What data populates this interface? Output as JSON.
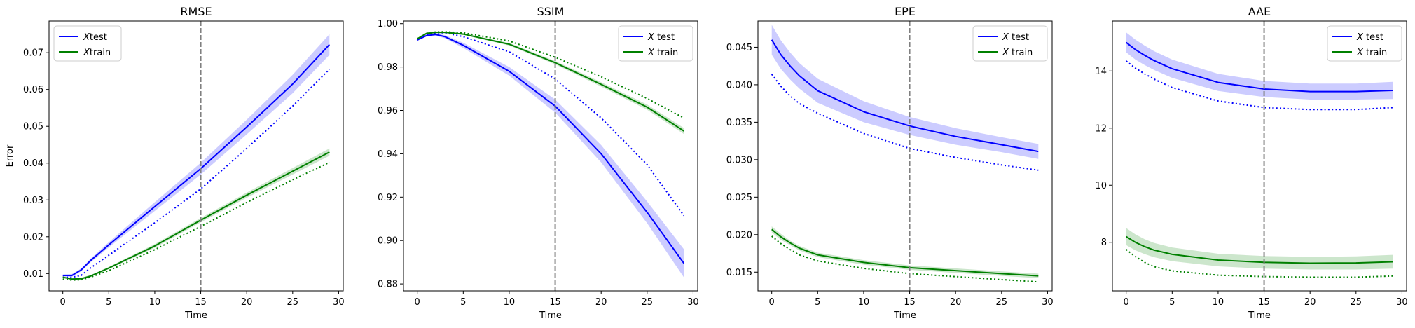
{
  "chart_data": [
    {
      "type": "line",
      "title": "RMSE",
      "xlabel": "Time",
      "ylabel": "Error",
      "xlim": [
        -1.5,
        30.5
      ],
      "ylim": [
        0.0053,
        0.0786
      ],
      "xticks": [
        0,
        5,
        10,
        15,
        20,
        25,
        30
      ],
      "yticks": [
        0.01,
        0.02,
        0.03,
        0.04,
        0.05,
        0.06,
        0.07
      ],
      "ytick_labels": [
        "0.01",
        "0.02",
        "0.03",
        "0.04",
        "0.05",
        "0.06",
        "0.07"
      ],
      "vline_x": 15,
      "legend_position": "upper-left",
      "legend": [
        {
          "label": "$X$test",
          "display_prefix": "X",
          "display_suffix": "test",
          "color": "#0000ff"
        },
        {
          "label": "$X$train",
          "display_prefix": "X",
          "display_suffix": "train",
          "color": "#008000"
        }
      ],
      "series": [
        {
          "name": "$X$test",
          "color": "#0000ff",
          "style": "solid",
          "x": [
            0,
            1,
            2,
            3,
            5,
            10,
            15,
            20,
            25,
            29
          ],
          "y": [
            0.0095,
            0.0095,
            0.011,
            0.0135,
            0.0178,
            0.0282,
            0.0385,
            0.0498,
            0.0615,
            0.0722
          ],
          "band_half_width": [
            0.0003,
            0.0004,
            0.0004,
            0.0005,
            0.0007,
            0.0012,
            0.0016,
            0.002,
            0.0025,
            0.0028
          ]
        },
        {
          "name": "$X$test (dotted)",
          "color": "#0000ff",
          "style": "dotted",
          "x": [
            0,
            1,
            2,
            3,
            5,
            10,
            15,
            20,
            25,
            29
          ],
          "y": [
            0.009,
            0.009,
            0.0095,
            0.0115,
            0.015,
            0.0238,
            0.033,
            0.044,
            0.0555,
            0.0655
          ]
        },
        {
          "name": "$X$train",
          "color": "#008000",
          "style": "solid",
          "x": [
            0,
            1,
            2,
            3,
            5,
            10,
            15,
            20,
            25,
            29
          ],
          "y": [
            0.009,
            0.0085,
            0.0086,
            0.0093,
            0.0115,
            0.0175,
            0.0245,
            0.0313,
            0.0378,
            0.043
          ],
          "band_half_width": [
            0.0003,
            0.0003,
            0.0003,
            0.0003,
            0.0003,
            0.0005,
            0.0006,
            0.0007,
            0.0009,
            0.001
          ]
        },
        {
          "name": "$X$train (dotted)",
          "color": "#008000",
          "style": "dotted",
          "x": [
            0,
            1,
            2,
            3,
            5,
            10,
            15,
            20,
            25,
            29
          ],
          "y": [
            0.0085,
            0.0082,
            0.0083,
            0.009,
            0.0108,
            0.0165,
            0.0228,
            0.0293,
            0.0355,
            0.0402
          ]
        }
      ]
    },
    {
      "type": "line",
      "title": "SSIM",
      "xlabel": "Time",
      "ylabel": "",
      "xlim": [
        -1.5,
        30.5
      ],
      "ylim": [
        0.8768,
        1.0012
      ],
      "xticks": [
        0,
        5,
        10,
        15,
        20,
        25,
        30
      ],
      "yticks": [
        0.88,
        0.9,
        0.92,
        0.94,
        0.96,
        0.98,
        1.0
      ],
      "ytick_labels": [
        "0.88",
        "0.90",
        "0.92",
        "0.94",
        "0.96",
        "0.98",
        "1.00"
      ],
      "vline_x": 15,
      "legend_position": "upper-right",
      "legend": [
        {
          "label": "$X$ test",
          "display_prefix": "X",
          "display_suffix": " test",
          "color": "#0000ff"
        },
        {
          "label": "$X$ train",
          "display_prefix": "X",
          "display_suffix": " train",
          "color": "#008000"
        }
      ],
      "series": [
        {
          "name": "$X$ test",
          "color": "#0000ff",
          "style": "solid",
          "x": [
            0,
            1,
            2,
            3,
            5,
            10,
            15,
            20,
            25,
            29
          ],
          "y": [
            0.9925,
            0.9945,
            0.995,
            0.994,
            0.99,
            0.978,
            0.962,
            0.94,
            0.913,
            0.8895
          ],
          "band_half_width": [
            0.0005,
            0.0005,
            0.0006,
            0.0007,
            0.0012,
            0.002,
            0.003,
            0.004,
            0.005,
            0.0065
          ]
        },
        {
          "name": "$X$ test (dotted)",
          "color": "#0000ff",
          "style": "dotted",
          "x": [
            0,
            1,
            2,
            3,
            5,
            10,
            15,
            20,
            25,
            29
          ],
          "y": [
            0.9925,
            0.995,
            0.9958,
            0.9958,
            0.994,
            0.987,
            0.9745,
            0.9565,
            0.935,
            0.9115
          ]
        },
        {
          "name": "$X$ train",
          "color": "#008000",
          "style": "solid",
          "x": [
            0,
            1,
            2,
            3,
            5,
            10,
            15,
            20,
            25,
            29
          ],
          "y": [
            0.993,
            0.9955,
            0.996,
            0.996,
            0.9952,
            0.9905,
            0.982,
            0.972,
            0.9615,
            0.9505
          ],
          "band_half_width": [
            0.0004,
            0.0004,
            0.0004,
            0.0004,
            0.0004,
            0.0006,
            0.0008,
            0.001,
            0.0012,
            0.0014
          ]
        },
        {
          "name": "$X$ train (dotted)",
          "color": "#008000",
          "style": "dotted",
          "x": [
            0,
            1,
            2,
            3,
            5,
            10,
            15,
            20,
            25,
            29
          ],
          "y": [
            0.993,
            0.9955,
            0.9962,
            0.9963,
            0.9958,
            0.992,
            0.9845,
            0.9755,
            0.9655,
            0.9565
          ]
        }
      ]
    },
    {
      "type": "line",
      "title": "EPE",
      "xlabel": "Time",
      "ylabel": "",
      "xlim": [
        -1.5,
        30.5
      ],
      "ylim": [
        0.0125,
        0.0485
      ],
      "xticks": [
        0,
        5,
        10,
        15,
        20,
        25,
        30
      ],
      "yticks": [
        0.015,
        0.02,
        0.025,
        0.03,
        0.035,
        0.04,
        0.045
      ],
      "ytick_labels": [
        "0.015",
        "0.020",
        "0.025",
        "0.030",
        "0.035",
        "0.040",
        "0.045"
      ],
      "vline_x": 15,
      "legend_position": "upper-right",
      "legend": [
        {
          "label": "$X$ test",
          "display_prefix": "X",
          "display_suffix": " test",
          "color": "#0000ff"
        },
        {
          "label": "$X$ train",
          "display_prefix": "X",
          "display_suffix": " train",
          "color": "#008000"
        }
      ],
      "series": [
        {
          "name": "$X$ test",
          "color": "#0000ff",
          "style": "solid",
          "x": [
            0,
            1,
            2,
            3,
            5,
            10,
            15,
            20,
            25,
            29
          ],
          "y": [
            0.046,
            0.044,
            0.0425,
            0.0412,
            0.0392,
            0.0364,
            0.0345,
            0.0331,
            0.032,
            0.0311
          ],
          "band_half_width": [
            0.002,
            0.0019,
            0.0018,
            0.0017,
            0.0016,
            0.0014,
            0.0012,
            0.0011,
            0.001,
            0.001
          ]
        },
        {
          "name": "$X$ test (dotted)",
          "color": "#0000ff",
          "style": "dotted",
          "x": [
            0,
            1,
            2,
            3,
            5,
            10,
            15,
            20,
            25,
            29
          ],
          "y": [
            0.0414,
            0.0398,
            0.0385,
            0.0375,
            0.0362,
            0.0335,
            0.0315,
            0.0303,
            0.0293,
            0.0286
          ]
        },
        {
          "name": "$X$ train",
          "color": "#008000",
          "style": "solid",
          "x": [
            0,
            1,
            2,
            3,
            5,
            10,
            15,
            20,
            25,
            29
          ],
          "y": [
            0.0207,
            0.0197,
            0.0189,
            0.0182,
            0.0173,
            0.0163,
            0.0156,
            0.0152,
            0.0148,
            0.0145
          ],
          "band_half_width": [
            0.0004,
            0.0004,
            0.0003,
            0.0003,
            0.0003,
            0.0003,
            0.0003,
            0.0003,
            0.0003,
            0.0003
          ]
        },
        {
          "name": "$X$ train (dotted)",
          "color": "#008000",
          "style": "dotted",
          "x": [
            0,
            1,
            2,
            3,
            5,
            10,
            15,
            20,
            25,
            29
          ],
          "y": [
            0.0198,
            0.0188,
            0.018,
            0.0173,
            0.0165,
            0.0155,
            0.0148,
            0.0144,
            0.014,
            0.0137
          ]
        }
      ]
    },
    {
      "type": "line",
      "title": "AAE",
      "xlabel": "Time",
      "ylabel": "",
      "xlim": [
        -1.5,
        30.5
      ],
      "ylim": [
        6.3,
        15.75
      ],
      "xticks": [
        0,
        5,
        10,
        15,
        20,
        25,
        30
      ],
      "yticks": [
        8,
        10,
        12,
        14
      ],
      "ytick_labels": [
        "8",
        "10",
        "12",
        "14"
      ],
      "vline_x": 15,
      "legend_position": "upper-right",
      "legend": [
        {
          "label": "$X$ test",
          "display_prefix": "X",
          "display_suffix": " test",
          "color": "#0000ff"
        },
        {
          "label": "$X$ train",
          "display_prefix": "X",
          "display_suffix": " train",
          "color": "#008000"
        }
      ],
      "series": [
        {
          "name": "$X$ test",
          "color": "#0000ff",
          "style": "solid",
          "x": [
            0,
            1,
            2,
            3,
            5,
            10,
            15,
            20,
            25,
            29
          ],
          "y": [
            15.0,
            14.75,
            14.55,
            14.37,
            14.08,
            13.6,
            13.37,
            13.28,
            13.28,
            13.32
          ],
          "band_half_width": [
            0.35,
            0.35,
            0.34,
            0.33,
            0.32,
            0.3,
            0.28,
            0.28,
            0.28,
            0.3
          ]
        },
        {
          "name": "$X$ test (dotted)",
          "color": "#0000ff",
          "style": "dotted",
          "x": [
            0,
            1,
            2,
            3,
            5,
            10,
            15,
            20,
            25,
            29
          ],
          "y": [
            14.35,
            14.1,
            13.9,
            13.72,
            13.42,
            12.95,
            12.72,
            12.65,
            12.65,
            12.72
          ]
        },
        {
          "name": "$X$ train",
          "color": "#008000",
          "style": "solid",
          "x": [
            0,
            1,
            2,
            3,
            5,
            10,
            15,
            20,
            25,
            29
          ],
          "y": [
            8.2,
            8.0,
            7.85,
            7.73,
            7.58,
            7.38,
            7.3,
            7.27,
            7.28,
            7.32
          ],
          "band_half_width": [
            0.3,
            0.28,
            0.26,
            0.25,
            0.24,
            0.22,
            0.22,
            0.22,
            0.23,
            0.24
          ]
        },
        {
          "name": "$X$ train (dotted)",
          "color": "#008000",
          "style": "dotted",
          "x": [
            0,
            1,
            2,
            3,
            5,
            10,
            15,
            20,
            25,
            29
          ],
          "y": [
            7.75,
            7.5,
            7.3,
            7.15,
            7.0,
            6.85,
            6.8,
            6.78,
            6.78,
            6.82
          ]
        }
      ]
    }
  ]
}
